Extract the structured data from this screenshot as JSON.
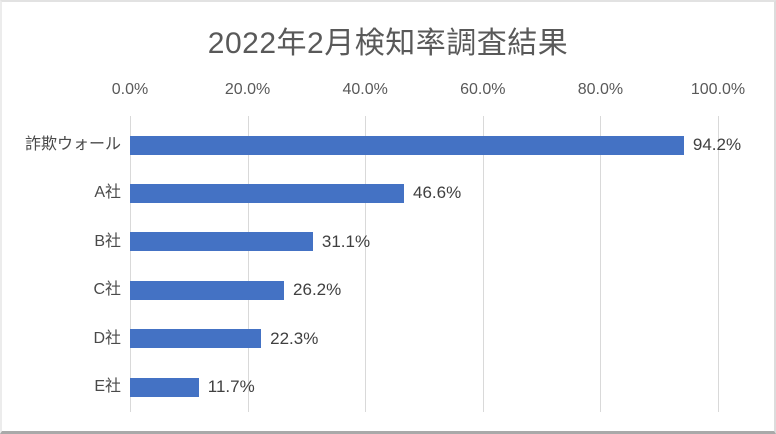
{
  "chart_data": {
    "type": "bar",
    "orientation": "horizontal",
    "title": "2022年2月検知率調査結果",
    "categories": [
      "詐欺ウォール",
      "A社",
      "B社",
      "C社",
      "D社",
      "E社"
    ],
    "values": [
      94.2,
      46.6,
      31.1,
      26.2,
      22.3,
      11.7
    ],
    "data_labels": [
      "94.2%",
      "46.6%",
      "31.1%",
      "26.2%",
      "22.3%",
      "11.7%"
    ],
    "x_axis": {
      "position": "top",
      "min": 0,
      "max": 100,
      "tick_step": 20,
      "ticks": [
        "0.0%",
        "20.0%",
        "40.0%",
        "60.0%",
        "80.0%",
        "100.0%"
      ]
    },
    "grid": true,
    "legend": "none",
    "colors": {
      "bar": "#4472C4",
      "grid": "#d9d9d9",
      "title": "#595959",
      "axis_tick_label": "#595959",
      "category_label": "#4a4a4a",
      "data_label": "#404040",
      "background": "#ffffff"
    }
  }
}
